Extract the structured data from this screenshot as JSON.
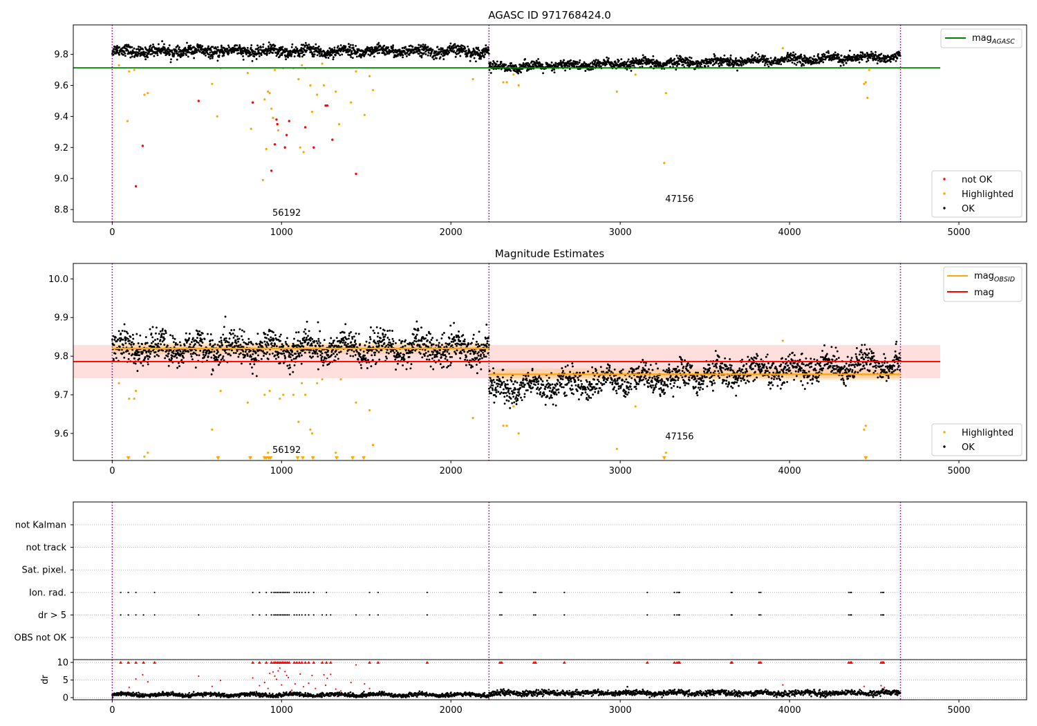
{
  "chart_data": [
    {
      "id": "agasc",
      "type": "scatter",
      "title": "AGASC ID 971768424.0",
      "xlim": [
        -230,
        5400
      ],
      "ylim": [
        8.72,
        9.99
      ],
      "x_ticks": [
        0,
        1000,
        2000,
        3000,
        4000,
        5000
      ],
      "y_ticks": [
        8.8,
        9.0,
        9.2,
        9.4,
        9.6,
        9.8
      ],
      "y_tick_labels": [
        "8.8",
        "9.0",
        "9.2",
        "9.4",
        "9.6",
        "9.8"
      ],
      "obsid_boundaries": [
        0,
        2225,
        4655
      ],
      "obsid_labels": [
        {
          "text": "56192",
          "x": 1030,
          "y": 8.76
        },
        {
          "text": "47156",
          "x": 3350,
          "y": 8.85
        }
      ],
      "mag_agasc": {
        "value": 9.713,
        "x_range": [
          -230,
          4890
        ]
      },
      "ok_bands": [
        {
          "x_range": [
            0,
            2225
          ],
          "level": 9.82,
          "amp": 0.035
        },
        {
          "x_range": [
            2225,
            4655
          ],
          "level_start": 9.715,
          "level_end": 9.785,
          "amp": 0.03
        }
      ],
      "not_ok_points": [
        [
          140,
          8.95
        ],
        [
          180,
          9.21
        ],
        [
          510,
          9.5
        ],
        [
          830,
          9.49
        ],
        [
          940,
          9.05
        ],
        [
          960,
          9.22
        ],
        [
          970,
          9.38
        ],
        [
          975,
          9.35
        ],
        [
          1020,
          9.2
        ],
        [
          1030,
          9.28
        ],
        [
          1045,
          9.37
        ],
        [
          1140,
          9.33
        ],
        [
          1190,
          9.2
        ],
        [
          1260,
          9.47
        ],
        [
          1270,
          9.47
        ],
        [
          1300,
          9.25
        ],
        [
          1440,
          9.03
        ]
      ],
      "highlighted_points": [
        [
          40,
          9.73
        ],
        [
          90,
          9.37
        ],
        [
          100,
          9.69
        ],
        [
          130,
          9.7
        ],
        [
          190,
          9.54
        ],
        [
          210,
          9.55
        ],
        [
          590,
          9.61
        ],
        [
          620,
          9.4
        ],
        [
          640,
          9.71
        ],
        [
          800,
          9.68
        ],
        [
          820,
          9.32
        ],
        [
          890,
          8.99
        ],
        [
          900,
          9.51
        ],
        [
          910,
          9.19
        ],
        [
          920,
          9.56
        ],
        [
          930,
          9.55
        ],
        [
          940,
          9.45
        ],
        [
          950,
          9.39
        ],
        [
          960,
          9.7
        ],
        [
          980,
          9.31
        ],
        [
          1010,
          9.71
        ],
        [
          1070,
          9.71
        ],
        [
          1100,
          9.64
        ],
        [
          1110,
          9.2
        ],
        [
          1120,
          9.73
        ],
        [
          1130,
          9.17
        ],
        [
          1140,
          9.71
        ],
        [
          1170,
          9.6
        ],
        [
          1180,
          9.43
        ],
        [
          1210,
          9.54
        ],
        [
          1240,
          9.74
        ],
        [
          1250,
          9.6
        ],
        [
          1320,
          9.56
        ],
        [
          1340,
          9.35
        ],
        [
          1410,
          9.49
        ],
        [
          1440,
          9.69
        ],
        [
          1490,
          9.41
        ],
        [
          1520,
          9.66
        ],
        [
          1540,
          9.57
        ],
        [
          2130,
          9.64
        ],
        [
          2310,
          9.62
        ],
        [
          2330,
          9.62
        ],
        [
          2370,
          9.67
        ],
        [
          2400,
          9.6
        ],
        [
          2980,
          9.56
        ],
        [
          3090,
          9.67
        ],
        [
          3260,
          9.1
        ],
        [
          3270,
          9.55
        ],
        [
          3960,
          9.84
        ],
        [
          4440,
          9.61
        ],
        [
          4450,
          9.62
        ],
        [
          4460,
          9.52
        ],
        [
          4470,
          9.7
        ]
      ],
      "legend_upper": [
        {
          "label": "mag",
          "sub": "AGASC",
          "color": "#008000"
        }
      ],
      "legend_lower": [
        {
          "label": "not OK",
          "color": "#ff0000"
        },
        {
          "label": "Highlighted",
          "color": "#ffa500"
        },
        {
          "label": "OK",
          "color": "#000000"
        }
      ]
    },
    {
      "id": "estimates",
      "type": "scatter",
      "title": "Magnitude Estimates",
      "xlim": [
        -230,
        5400
      ],
      "ylim": [
        9.53,
        10.04
      ],
      "x_ticks": [
        0,
        1000,
        2000,
        3000,
        4000,
        5000
      ],
      "y_ticks": [
        9.6,
        9.7,
        9.8,
        9.9,
        10.0
      ],
      "y_tick_labels": [
        "9.6",
        "9.7",
        "9.8",
        "9.9",
        "10.0"
      ],
      "obsid_boundaries": [
        0,
        2225,
        4655
      ],
      "obsid_labels": [
        {
          "text": "56192",
          "x": 1030,
          "y": 9.55
        },
        {
          "text": "47156",
          "x": 3350,
          "y": 9.585
        }
      ],
      "mag": {
        "value": 9.786,
        "band": [
          9.743,
          9.829
        ],
        "x_range": [
          -230,
          4890
        ]
      },
      "mag_obsid": [
        {
          "value": 9.82,
          "band": [
            9.805,
            9.835
          ],
          "x_range": [
            0,
            2225
          ]
        },
        {
          "value": 9.753,
          "band": [
            9.738,
            9.768
          ],
          "x_range": [
            2225,
            4655
          ]
        }
      ],
      "ok_bands": [
        {
          "x_range": [
            0,
            2225
          ],
          "level": 9.82,
          "amp": 0.04
        },
        {
          "x_range": [
            2225,
            4655
          ],
          "level_start": 9.715,
          "level_end": 9.785,
          "amp": 0.035
        }
      ],
      "highlighted_points": [
        [
          40,
          9.73
        ],
        [
          100,
          9.69
        ],
        [
          130,
          9.69
        ],
        [
          140,
          9.71
        ],
        [
          190,
          9.54
        ],
        [
          210,
          9.55
        ],
        [
          590,
          9.61
        ],
        [
          640,
          9.71
        ],
        [
          800,
          9.68
        ],
        [
          900,
          9.7
        ],
        [
          920,
          9.55
        ],
        [
          930,
          9.71
        ],
        [
          990,
          9.69
        ],
        [
          1010,
          9.7
        ],
        [
          1070,
          9.7
        ],
        [
          1100,
          9.63
        ],
        [
          1120,
          9.73
        ],
        [
          1140,
          9.7
        ],
        [
          1170,
          9.61
        ],
        [
          1180,
          9.6
        ],
        [
          1210,
          9.73
        ],
        [
          1240,
          9.74
        ],
        [
          1320,
          9.55
        ],
        [
          1350,
          9.74
        ],
        [
          1440,
          9.68
        ],
        [
          1520,
          9.66
        ],
        [
          1540,
          9.57
        ],
        [
          2130,
          9.64
        ],
        [
          2310,
          9.62
        ],
        [
          2330,
          9.62
        ],
        [
          2370,
          9.67
        ],
        [
          2400,
          9.6
        ],
        [
          2980,
          9.56
        ],
        [
          3090,
          9.67
        ],
        [
          3270,
          9.55
        ],
        [
          3960,
          9.84
        ],
        [
          4440,
          9.61
        ],
        [
          4450,
          9.62
        ]
      ],
      "clipped_points_x": [
        95,
        625,
        815,
        900,
        910,
        925,
        935,
        1095,
        1125,
        1185,
        1325,
        1420,
        1485,
        3260,
        4450
      ],
      "legend_upper": [
        {
          "label": "mag",
          "sub": "OBSID",
          "color": "#ffa500"
        },
        {
          "label": "mag",
          "sub": "",
          "color": "#ff0000"
        }
      ],
      "legend_lower": [
        {
          "label": "Highlighted",
          "color": "#ffa500"
        },
        {
          "label": "OK",
          "color": "#000000"
        }
      ]
    },
    {
      "id": "flags",
      "type": "scatter",
      "xlim": [
        -230,
        5400
      ],
      "categories": [
        "OBS not OK",
        "dr > 5",
        "Ion. rad.",
        "Sat. pixel.",
        "not track",
        "not Kalman"
      ],
      "obsid_boundaries": [
        0,
        2225,
        4655
      ],
      "flag_points": {
        "dr > 5": [
          50,
          95,
          140,
          185,
          250,
          510,
          830,
          870,
          910,
          940,
          955,
          965,
          975,
          985,
          995,
          1005,
          1015,
          1025,
          1035,
          1045,
          1075,
          1090,
          1105,
          1120,
          1140,
          1160,
          1190,
          1240,
          1265,
          1290,
          1440,
          1520,
          1570,
          1860,
          2290,
          2300,
          2490,
          2500,
          2670,
          3160,
          3320,
          3335,
          3345,
          3350,
          3655,
          3660,
          3820,
          3830,
          4350,
          4360,
          4365,
          4540,
          4550,
          4555
        ],
        "Ion. rad.": [
          50,
          95,
          140,
          250,
          830,
          870,
          910,
          940,
          955,
          965,
          975,
          985,
          995,
          1005,
          1015,
          1025,
          1035,
          1045,
          1075,
          1090,
          1105,
          1120,
          1140,
          1160,
          1190,
          1265,
          1520,
          1570,
          1860,
          2290,
          2300,
          2490,
          2500,
          2670,
          3160,
          3320,
          3335,
          3345,
          3350,
          3655,
          3660,
          3820,
          3830,
          4350,
          4360,
          4365,
          4540,
          4550,
          4555
        ]
      }
    },
    {
      "id": "dr",
      "type": "scatter",
      "ylabel": "dr",
      "xlim": [
        -230,
        5400
      ],
      "ylim": [
        -0.6,
        10.8
      ],
      "x_ticks": [
        0,
        1000,
        2000,
        3000,
        4000,
        5000
      ],
      "y_ticks": [
        0,
        5,
        10
      ],
      "obsid_boundaries": [
        0,
        2225,
        4655
      ],
      "dr_red_points": [
        [
          50,
          10
        ],
        [
          95,
          10
        ],
        [
          140,
          10
        ],
        [
          185,
          10
        ],
        [
          250,
          10
        ],
        [
          830,
          10
        ],
        [
          870,
          10
        ],
        [
          910,
          10
        ],
        [
          940,
          10
        ],
        [
          955,
          10
        ],
        [
          965,
          10
        ],
        [
          975,
          10
        ],
        [
          985,
          10
        ],
        [
          995,
          10
        ],
        [
          1005,
          10
        ],
        [
          1015,
          10
        ],
        [
          1025,
          10
        ],
        [
          1035,
          10
        ],
        [
          1045,
          10
        ],
        [
          1075,
          10
        ],
        [
          1090,
          10
        ],
        [
          1105,
          10
        ],
        [
          1120,
          10
        ],
        [
          1140,
          10
        ],
        [
          1160,
          10
        ],
        [
          1190,
          10
        ],
        [
          1240,
          10
        ],
        [
          1265,
          10
        ],
        [
          1290,
          10
        ],
        [
          1520,
          10
        ],
        [
          1570,
          10
        ],
        [
          1860,
          10
        ],
        [
          2290,
          10
        ],
        [
          2300,
          10
        ],
        [
          2490,
          10
        ],
        [
          2500,
          10
        ],
        [
          2670,
          10
        ],
        [
          3160,
          10
        ],
        [
          3320,
          10
        ],
        [
          3335,
          10
        ],
        [
          3345,
          10
        ],
        [
          3350,
          10
        ],
        [
          3655,
          10
        ],
        [
          3660,
          10
        ],
        [
          3820,
          10
        ],
        [
          3830,
          10
        ],
        [
          4350,
          10
        ],
        [
          4360,
          10
        ],
        [
          4365,
          10
        ],
        [
          4540,
          10
        ],
        [
          4550,
          10
        ],
        [
          4555,
          10
        ],
        [
          100,
          2.9
        ],
        [
          140,
          5.3
        ],
        [
          180,
          6.5
        ],
        [
          210,
          4.5
        ],
        [
          510,
          6.1
        ],
        [
          590,
          3.2
        ],
        [
          640,
          4.9
        ],
        [
          830,
          5.6
        ],
        [
          870,
          3.4
        ],
        [
          900,
          4.3
        ],
        [
          920,
          2.6
        ],
        [
          930,
          6.9
        ],
        [
          950,
          7.3
        ],
        [
          960,
          6.1
        ],
        [
          970,
          5.2
        ],
        [
          980,
          7.6
        ],
        [
          990,
          8.4
        ],
        [
          1000,
          3.6
        ],
        [
          1020,
          7.4
        ],
        [
          1030,
          6.3
        ],
        [
          1040,
          5.7
        ],
        [
          1060,
          2.1
        ],
        [
          1080,
          3.9
        ],
        [
          1110,
          6.7
        ],
        [
          1130,
          3.1
        ],
        [
          1160,
          4.1
        ],
        [
          1180,
          6.3
        ],
        [
          1200,
          2.6
        ],
        [
          1250,
          6.5
        ],
        [
          1260,
          3.5
        ],
        [
          1270,
          5.5
        ],
        [
          1290,
          6.6
        ],
        [
          1320,
          2.4
        ],
        [
          1350,
          1.9
        ],
        [
          1410,
          4.3
        ],
        [
          1440,
          9.3
        ],
        [
          1490,
          3.9
        ],
        [
          1520,
          2.6
        ],
        [
          3960,
          3.6
        ],
        [
          4440,
          3.2
        ],
        [
          4540,
          3.4
        ],
        [
          4560,
          2.9
        ]
      ]
    }
  ]
}
